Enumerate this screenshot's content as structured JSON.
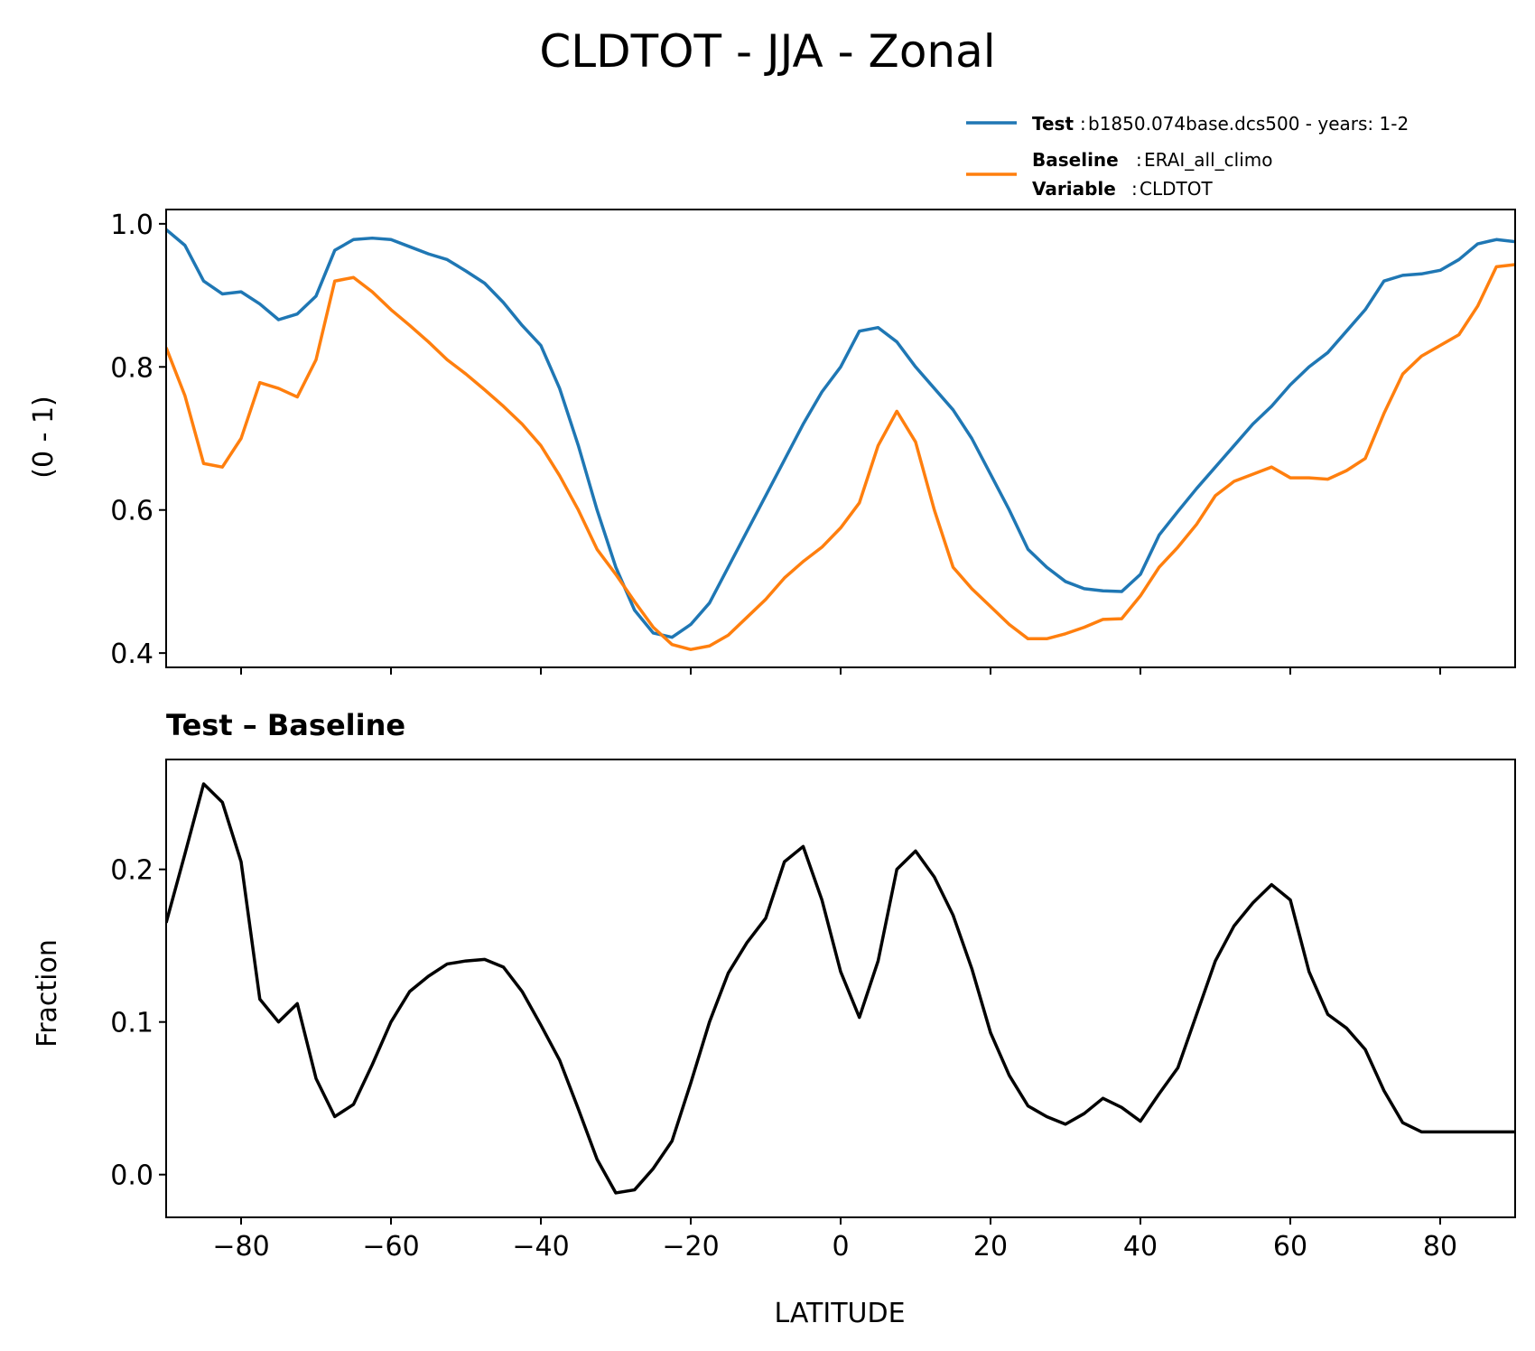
{
  "title": "CLDTOT - JJA - Zonal",
  "legend": {
    "test_key": "Test",
    "test_value": "b1850.074base.dcs500 - years: 1-2",
    "baseline_key": "Baseline",
    "baseline_value": "ERAI_all_climo",
    "variable_key": "Variable",
    "variable_value": "CLDTOT",
    "separator": ":"
  },
  "colors": {
    "test": "#1f77b4",
    "baseline": "#ff7f0e",
    "diff": "#000000"
  },
  "chart_data": [
    {
      "type": "line",
      "title": "",
      "xlabel": "",
      "ylabel": "(0 - 1)",
      "xlim": [
        -90,
        90
      ],
      "ylim": [
        0.38,
        1.02
      ],
      "yticks": [
        0.4,
        0.6,
        0.8,
        1.0
      ],
      "ytick_labels": [
        "0.4",
        "0.6",
        "0.8",
        "1.0"
      ],
      "legend_position": "top-right",
      "x": [
        -90,
        -87.5,
        -85,
        -82.5,
        -80,
        -77.5,
        -75,
        -72.5,
        -70,
        -67.5,
        -65,
        -62.5,
        -60,
        -57.5,
        -55,
        -52.5,
        -50,
        -47.5,
        -45,
        -42.5,
        -40,
        -37.5,
        -35,
        -32.5,
        -30,
        -27.5,
        -25,
        -22.5,
        -20,
        -17.5,
        -15,
        -12.5,
        -10,
        -7.5,
        -5,
        -2.5,
        0,
        2.5,
        5,
        7.5,
        10,
        12.5,
        15,
        17.5,
        20,
        22.5,
        25,
        27.5,
        30,
        32.5,
        35,
        37.5,
        40,
        42.5,
        45,
        47.5,
        50,
        52.5,
        55,
        57.5,
        60,
        62.5,
        65,
        67.5,
        70,
        72.5,
        75,
        77.5,
        80,
        82.5,
        85,
        87.5,
        90
      ],
      "series": [
        {
          "name": "Test",
          "values": [
            0.992,
            0.97,
            0.92,
            0.902,
            0.905,
            0.888,
            0.866,
            0.874,
            0.899,
            0.963,
            0.978,
            0.98,
            0.978,
            0.968,
            0.958,
            0.95,
            0.934,
            0.917,
            0.89,
            0.858,
            0.83,
            0.77,
            0.69,
            0.6,
            0.52,
            0.46,
            0.428,
            0.422,
            0.44,
            0.47,
            0.52,
            0.57,
            0.62,
            0.67,
            0.72,
            0.765,
            0.8,
            0.85,
            0.855,
            0.835,
            0.8,
            0.77,
            0.74,
            0.7,
            0.65,
            0.6,
            0.545,
            0.52,
            0.5,
            0.49,
            0.487,
            0.486,
            0.51,
            0.565,
            0.598,
            0.63,
            0.66,
            0.69,
            0.72,
            0.745,
            0.775,
            0.8,
            0.82,
            0.85,
            0.88,
            0.92,
            0.928,
            0.93,
            0.935,
            0.95,
            0.972,
            0.978,
            0.975
          ]
        },
        {
          "name": "Baseline",
          "values": [
            0.827,
            0.76,
            0.665,
            0.66,
            0.7,
            0.778,
            0.77,
            0.758,
            0.81,
            0.92,
            0.925,
            0.905,
            0.88,
            0.858,
            0.835,
            0.81,
            0.79,
            0.768,
            0.745,
            0.72,
            0.69,
            0.648,
            0.6,
            0.545,
            0.51,
            0.472,
            0.436,
            0.412,
            0.405,
            0.41,
            0.425,
            0.45,
            0.475,
            0.505,
            0.528,
            0.548,
            0.575,
            0.61,
            0.69,
            0.738,
            0.695,
            0.6,
            0.52,
            0.49,
            0.465,
            0.44,
            0.42,
            0.42,
            0.427,
            0.436,
            0.447,
            0.448,
            0.48,
            0.52,
            0.548,
            0.58,
            0.62,
            0.64,
            0.65,
            0.66,
            0.645,
            0.645,
            0.643,
            0.655,
            0.672,
            0.735,
            0.79,
            0.815,
            0.83,
            0.845,
            0.885,
            0.94,
            0.943
          ]
        }
      ]
    },
    {
      "type": "line",
      "title": "Test – Baseline",
      "xlabel": "LATITUDE",
      "ylabel": "Fraction",
      "xlim": [
        -90,
        90
      ],
      "ylim": [
        -0.028,
        0.272
      ],
      "xticks": [
        -80,
        -60,
        -40,
        -20,
        0,
        20,
        40,
        60,
        80
      ],
      "xtick_labels": [
        "−80",
        "−60",
        "−40",
        "−20",
        "0",
        "20",
        "40",
        "60",
        "80"
      ],
      "yticks": [
        0.0,
        0.1,
        0.2
      ],
      "ytick_labels": [
        "0.0",
        "0.1",
        "0.2"
      ],
      "x": [
        -90,
        -87.5,
        -85,
        -82.5,
        -80,
        -77.5,
        -75,
        -72.5,
        -70,
        -67.5,
        -65,
        -62.5,
        -60,
        -57.5,
        -55,
        -52.5,
        -50,
        -47.5,
        -45,
        -42.5,
        -40,
        -37.5,
        -35,
        -32.5,
        -30,
        -27.5,
        -25,
        -22.5,
        -20,
        -17.5,
        -15,
        -12.5,
        -10,
        -7.5,
        -5,
        -2.5,
        0,
        2.5,
        5,
        7.5,
        10,
        12.5,
        15,
        17.5,
        20,
        22.5,
        25,
        27.5,
        30,
        32.5,
        35,
        37.5,
        40,
        42.5,
        45,
        47.5,
        50,
        52.5,
        55,
        57.5,
        60,
        62.5,
        65,
        67.5,
        70,
        72.5,
        75,
        77.5,
        80,
        82.5,
        85,
        87.5,
        90
      ],
      "series": [
        {
          "name": "",
          "values": [
            0.165,
            0.21,
            0.256,
            0.244,
            0.205,
            0.115,
            0.1,
            0.112,
            0.063,
            0.038,
            0.046,
            0.072,
            0.1,
            0.12,
            0.13,
            0.138,
            0.14,
            0.141,
            0.136,
            0.12,
            0.098,
            0.075,
            0.043,
            0.01,
            -0.012,
            -0.01,
            0.004,
            0.022,
            0.06,
            0.1,
            0.132,
            0.152,
            0.168,
            0.205,
            0.215,
            0.18,
            0.133,
            0.103,
            0.14,
            0.2,
            0.212,
            0.195,
            0.17,
            0.135,
            0.093,
            0.065,
            0.045,
            0.038,
            0.033,
            0.04,
            0.05,
            0.044,
            0.035,
            0.053,
            0.07,
            0.105,
            0.14,
            0.163,
            0.178,
            0.19,
            0.18,
            0.133,
            0.105,
            0.096,
            0.082,
            0.055,
            0.034,
            0.028,
            0.028,
            0.028,
            0.028,
            0.028,
            0.028
          ]
        }
      ]
    }
  ]
}
